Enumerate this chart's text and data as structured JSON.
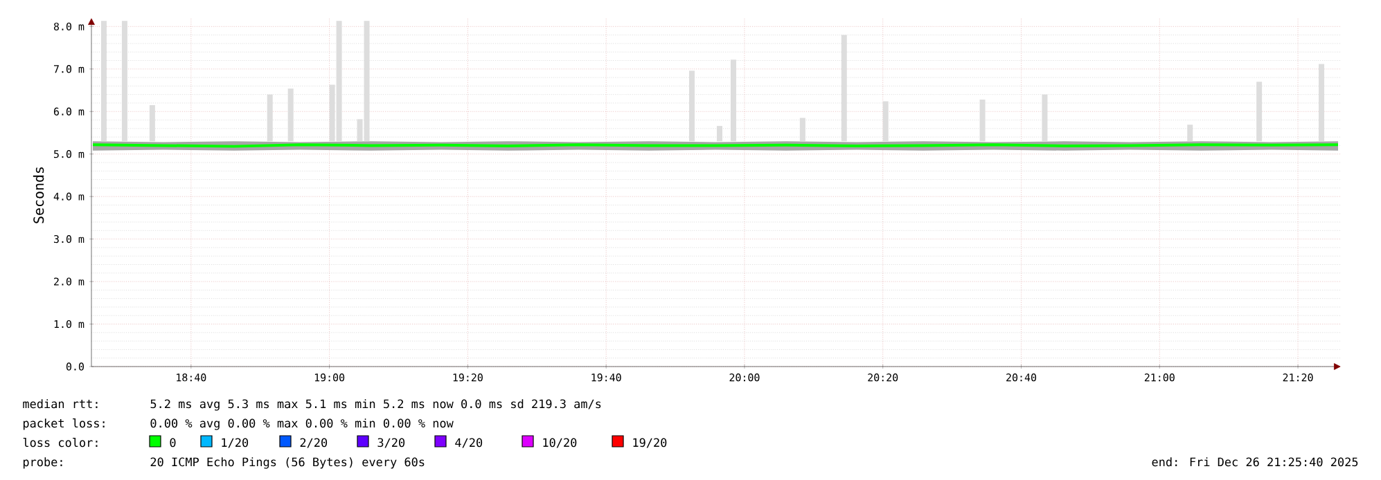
{
  "chart_data": {
    "type": "line",
    "ylabel": "Seconds",
    "xlim": [
      18.4267,
      21.4367
    ],
    "ylim": [
      0,
      8.2
    ],
    "xticks": [
      {
        "value": 18.6667,
        "label": "18:40"
      },
      {
        "value": 19,
        "label": "19:00"
      },
      {
        "value": 19.3333,
        "label": "19:20"
      },
      {
        "value": 19.6667,
        "label": "19:40"
      },
      {
        "value": 20,
        "label": "20:00"
      },
      {
        "value": 20.3333,
        "label": "20:20"
      },
      {
        "value": 20.6667,
        "label": "20:40"
      },
      {
        "value": 21,
        "label": "21:00"
      },
      {
        "value": 21.3333,
        "label": "21:20"
      }
    ],
    "yticks": [
      {
        "value": 0,
        "label": "0.0"
      },
      {
        "value": 1,
        "label": "1.0 m"
      },
      {
        "value": 2,
        "label": "2.0 m"
      },
      {
        "value": 3,
        "label": "3.0 m"
      },
      {
        "value": 4,
        "label": "4.0 m"
      },
      {
        "value": 5,
        "label": "5.0 m"
      },
      {
        "value": 6,
        "label": "6.0 m"
      },
      {
        "value": 7,
        "label": "7.0 m"
      },
      {
        "value": 8,
        "label": "8.0 m"
      }
    ],
    "grid": true,
    "series": [
      {
        "type": "bar",
        "color": "#dddddd",
        "x": [
          18.4567,
          18.5067,
          18.5733,
          18.8567,
          18.9067,
          19.0067,
          19.0233,
          19.0733,
          19.09,
          19.8733,
          19.94,
          19.9733,
          20.14,
          20.24,
          20.34,
          20.5733,
          20.7233,
          21.0733,
          21.24,
          21.39
        ],
        "base": [
          5.3,
          5.3,
          5.3,
          5.3,
          5.3,
          5.3,
          5.3,
          5.3,
          5.3,
          5.3,
          5.3,
          5.3,
          5.3,
          5.3,
          5.3,
          5.3,
          5.3,
          5.3,
          5.3,
          5.3
        ],
        "values": [
          2.83,
          2.83,
          0.85,
          1.1,
          1.24,
          1.33,
          2.83,
          0.52,
          2.83,
          1.66,
          0.36,
          1.92,
          0.55,
          2.5,
          0.94,
          0.98,
          1.1,
          0.39,
          1.4,
          1.82
        ]
      },
      {
        "color": "#00ff00",
        "x": [
          18.43,
          18.6,
          18.77,
          18.93,
          19.1,
          19.27,
          19.43,
          19.6,
          19.77,
          19.93,
          20.1,
          20.27,
          20.43,
          20.6,
          20.77,
          20.93,
          21.1,
          21.27,
          21.43
        ],
        "values": [
          5.22,
          5.2,
          5.18,
          5.22,
          5.2,
          5.21,
          5.19,
          5.22,
          5.2,
          5.2,
          5.21,
          5.19,
          5.2,
          5.22,
          5.19,
          5.2,
          5.22,
          5.21,
          5.22
        ],
        "lower": [
          5.08,
          5.1,
          5.08,
          5.1,
          5.08,
          5.1,
          5.08,
          5.1,
          5.08,
          5.1,
          5.08,
          5.1,
          5.08,
          5.1,
          5.08,
          5.1,
          5.08,
          5.1,
          5.08
        ],
        "upper": [
          5.3,
          5.28,
          5.3,
          5.28,
          5.3,
          5.28,
          5.3,
          5.28,
          5.3,
          5.28,
          5.3,
          5.28,
          5.3,
          5.28,
          5.3,
          5.28,
          5.3,
          5.28,
          5.3
        ]
      }
    ],
    "annotations": [
      "median rtt:",
      "5.2 ms avg  5.3 ms max  5.1 ms min  5.2 ms now  0.0 ms sd  219.3   am/s",
      "packet loss:",
      "0.00 % avg  0.00 % max  0.00 % min  0.00 % now",
      "loss color:",
      "0",
      "1/20",
      "2/20",
      "3/20",
      "4/20",
      "10/20",
      "19/20",
      "probe:",
      "20 ICMP Echo Pings (56 Bytes) every 60s",
      "end: Fri Dec 26 21:25:40 2025"
    ]
  }
}
